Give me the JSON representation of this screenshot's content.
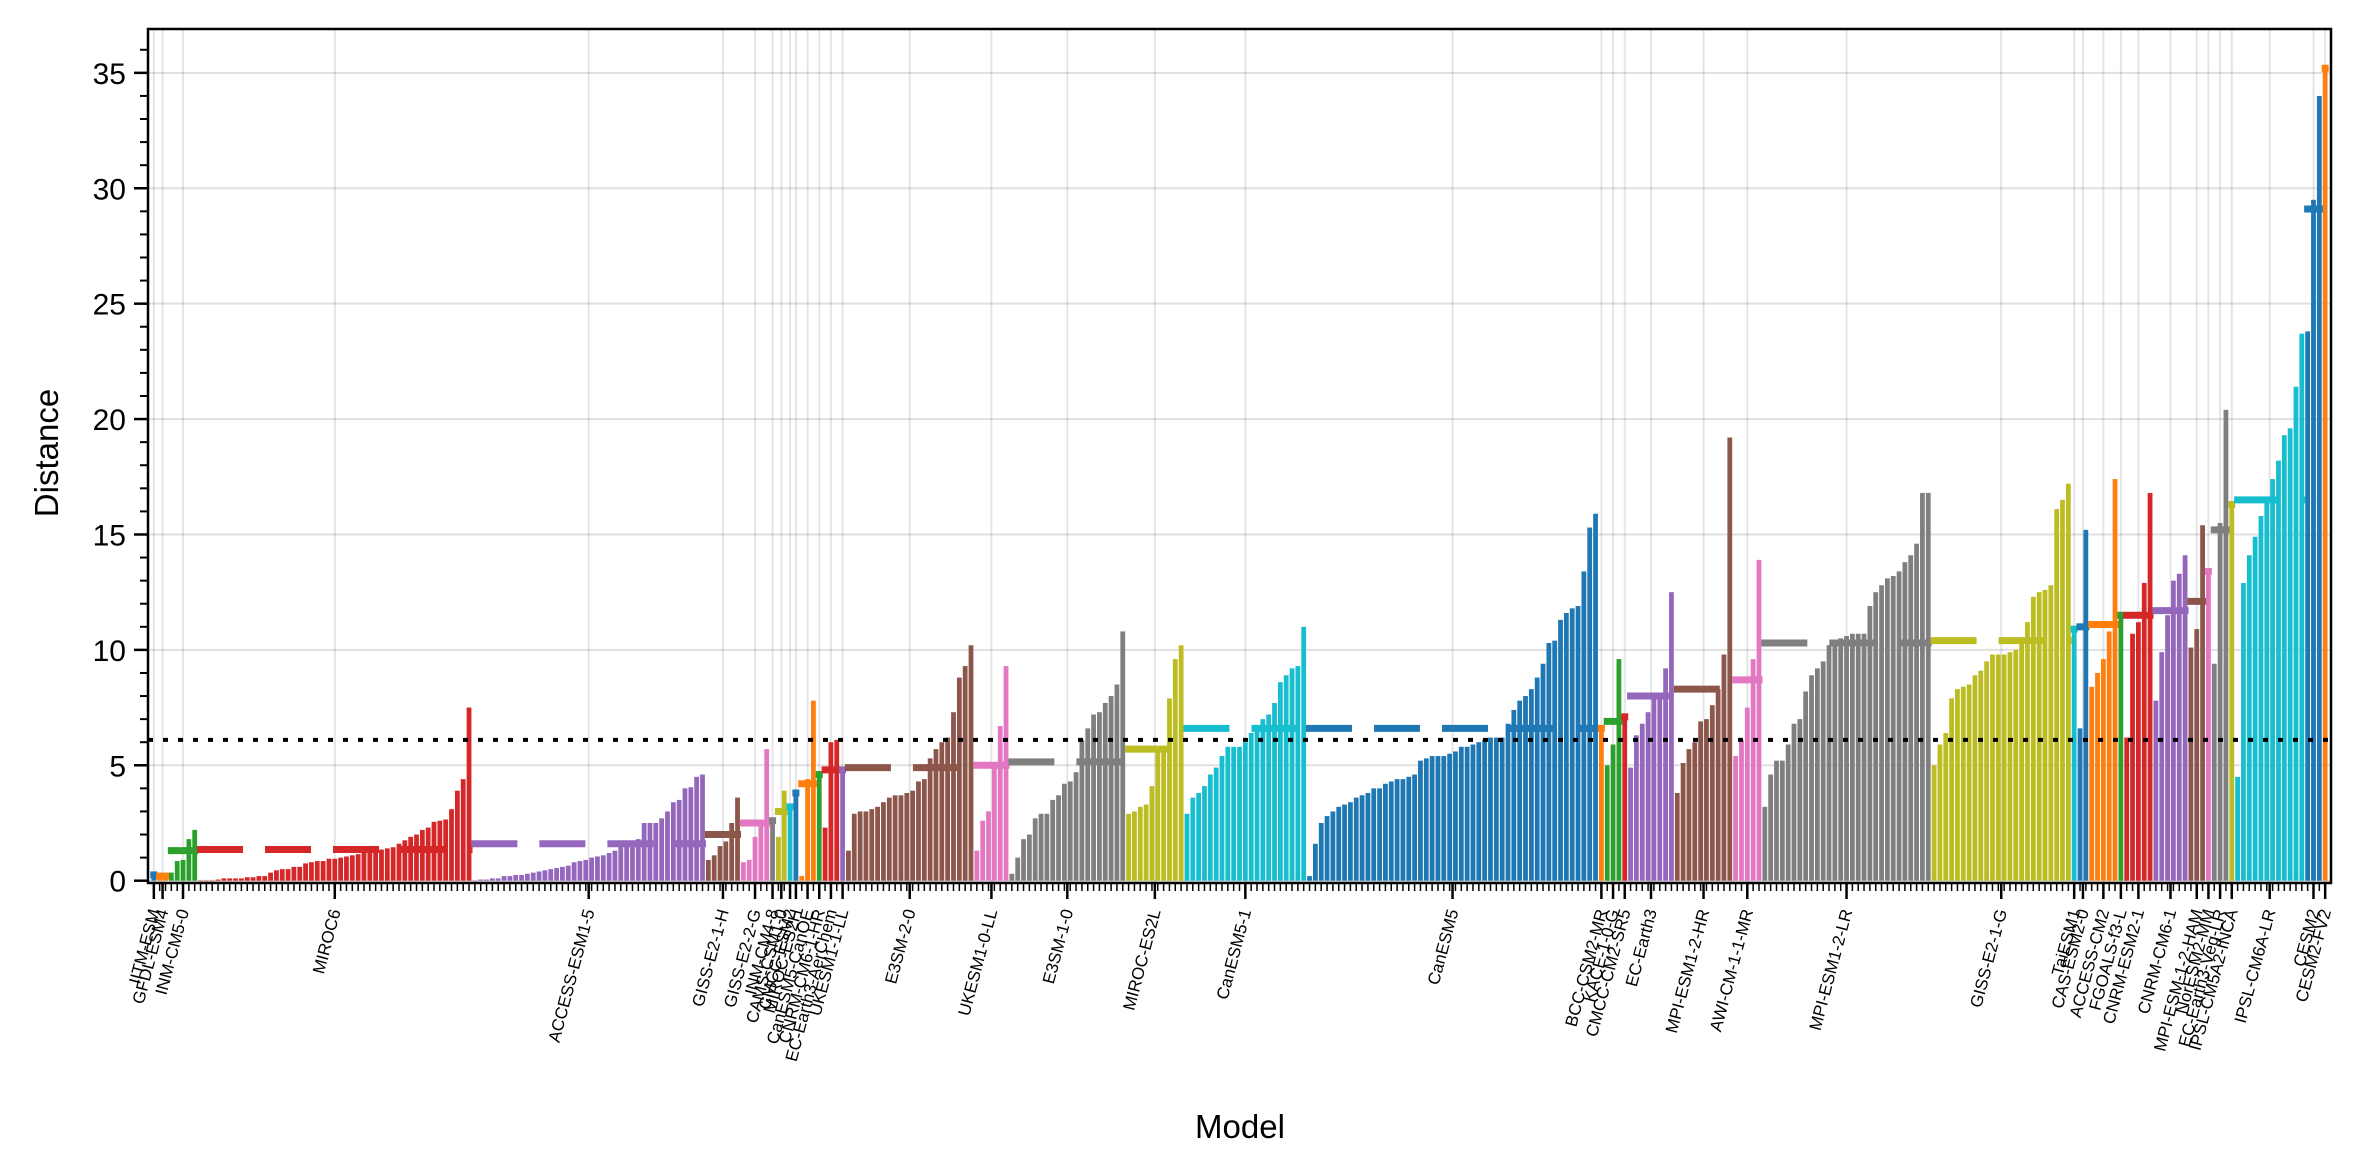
{
  "chart_data": {
    "type": "bar",
    "title": "",
    "xlabel": "Model",
    "ylabel": "Distance",
    "ylim": [
      -0.1,
      36.9
    ],
    "yticks": [
      0,
      5,
      10,
      15,
      20,
      25,
      30,
      35
    ],
    "ytick_labels": [
      "0",
      "5",
      "10",
      "15",
      "20",
      "25",
      "30",
      "35"
    ],
    "grid": true,
    "legend": "none",
    "reference_line": {
      "value": 6.1,
      "style": "dotted",
      "color": "#000000"
    },
    "mean_line_style": "dashed",
    "groups": [
      {
        "name": "IITM-ESM",
        "color": "#1f77b4",
        "mean": 0.25,
        "values": [
          0.25
        ]
      },
      {
        "name": "GFDL-ESM4",
        "color": "#ff7f0e",
        "mean": 0.2,
        "values": [
          0.1,
          0.3
        ]
      },
      {
        "name": "INM-CM5-0",
        "color": "#2ca02c",
        "mean": 1.3,
        "values": [
          0.35,
          0.85,
          0.9,
          1.8,
          2.2
        ]
      },
      {
        "name": "MIROC6",
        "color": "#d62728",
        "mean": 1.35,
        "values": [
          0.0,
          0.0,
          0.0,
          0.05,
          0.1,
          0.1,
          0.1,
          0.1,
          0.15,
          0.15,
          0.2,
          0.2,
          0.35,
          0.45,
          0.5,
          0.5,
          0.6,
          0.6,
          0.75,
          0.8,
          0.85,
          0.85,
          0.95,
          0.95,
          1.0,
          1.05,
          1.1,
          1.15,
          1.2,
          1.25,
          1.3,
          1.35,
          1.4,
          1.45,
          1.6,
          1.75,
          1.9,
          2.0,
          2.2,
          2.3,
          2.55,
          2.6,
          2.65,
          3.1,
          3.9,
          4.4,
          7.5
        ]
      },
      {
        "name": "ACCESS-ESM1-5",
        "color": "#9467bd",
        "mean": 1.6,
        "values": [
          0.0,
          0.05,
          0.05,
          0.1,
          0.1,
          0.2,
          0.2,
          0.25,
          0.25,
          0.3,
          0.35,
          0.4,
          0.45,
          0.5,
          0.55,
          0.6,
          0.65,
          0.8,
          0.85,
          0.9,
          1.0,
          1.05,
          1.1,
          1.2,
          1.3,
          1.55,
          1.6,
          1.7,
          1.8,
          2.5,
          2.5,
          2.5,
          2.7,
          3.0,
          3.4,
          3.5,
          4.0,
          4.05,
          4.5,
          4.6
        ]
      },
      {
        "name": "GISS-E2-1-H",
        "color": "#8c564b",
        "mean": 2.0,
        "values": [
          0.9,
          1.1,
          1.5,
          1.7,
          2.5,
          3.6
        ]
      },
      {
        "name": "GISS-E2-2-G",
        "color": "#e377c2",
        "mean": 2.5,
        "values": [
          0.8,
          0.9,
          1.9,
          2.5,
          5.7
        ]
      },
      {
        "name": "INM-CM4-8",
        "color": "#7f7f7f",
        "mean": 2.6,
        "values": [
          2.6
        ]
      },
      {
        "name": "CAMS-CSM1-0",
        "color": "#bcbd22",
        "mean": 3.0,
        "values": [
          1.9,
          3.9
        ]
      },
      {
        "name": "CMCC-ESM2",
        "color": "#17becf",
        "mean": 3.2,
        "values": [
          3.2
        ]
      },
      {
        "name": "MIROC-ES2H",
        "color": "#1f77b4",
        "mean": 3.8,
        "values": [
          3.8
        ]
      },
      {
        "name": "CanESM5-CanOE",
        "color": "#ff7f0e",
        "mean": 4.2,
        "values": [
          0.2,
          4.4,
          7.8
        ]
      },
      {
        "name": "CNRM-CM6-1-HR",
        "color": "#2ca02c",
        "mean": 4.6,
        "values": [
          4.6
        ]
      },
      {
        "name": "EC-Earth3-AerChem",
        "color": "#d62728",
        "mean": 4.8,
        "values": [
          2.3,
          6.0,
          6.1
        ]
      },
      {
        "name": "UKESM1-1-LL",
        "color": "#9467bd",
        "mean": 4.8,
        "values": [
          4.8
        ]
      },
      {
        "name": "E3SM-2-0",
        "color": "#8c564b",
        "mean": 4.9,
        "values": [
          1.3,
          2.9,
          3.0,
          3.0,
          3.1,
          3.2,
          3.4,
          3.6,
          3.7,
          3.7,
          3.8,
          3.9,
          4.3,
          4.4,
          5.3,
          5.7,
          6.0,
          6.2,
          7.3,
          8.8,
          9.3,
          10.2
        ]
      },
      {
        "name": "UKESM1-0-LL",
        "color": "#e377c2",
        "mean": 5.0,
        "values": [
          1.3,
          2.6,
          3.0,
          4.9,
          6.7,
          9.3
        ]
      },
      {
        "name": "E3SM-1-0",
        "color": "#7f7f7f",
        "mean": 5.15,
        "values": [
          0.3,
          1.0,
          1.8,
          2.0,
          2.7,
          2.9,
          2.9,
          3.5,
          3.7,
          4.2,
          4.3,
          4.7,
          6.1,
          6.6,
          7.2,
          7.3,
          7.7,
          8.0,
          8.5,
          10.8
        ]
      },
      {
        "name": "MIROC-ES2L",
        "color": "#bcbd22",
        "mean": 5.7,
        "values": [
          2.9,
          3.0,
          3.2,
          3.3,
          4.1,
          5.7,
          5.7,
          7.9,
          9.6,
          10.2
        ]
      },
      {
        "name": "CanESM5-1",
        "color": "#17becf",
        "mean": 6.6,
        "values": [
          2.9,
          3.6,
          3.8,
          4.1,
          4.6,
          4.9,
          5.4,
          5.8,
          5.8,
          5.8,
          6.0,
          6.4,
          6.6,
          7.0,
          7.2,
          7.7,
          8.6,
          8.9,
          9.2,
          9.3,
          11.0
        ]
      },
      {
        "name": "CanESM5",
        "color": "#1f77b4",
        "mean": 6.6,
        "values": [
          0.2,
          1.6,
          2.5,
          2.8,
          3.0,
          3.2,
          3.3,
          3.4,
          3.6,
          3.7,
          3.8,
          4.0,
          4.0,
          4.2,
          4.3,
          4.4,
          4.4,
          4.5,
          4.6,
          5.2,
          5.3,
          5.4,
          5.4,
          5.4,
          5.5,
          5.6,
          5.8,
          5.8,
          5.9,
          6.0,
          6.1,
          6.2,
          6.2,
          6.2,
          6.8,
          7.4,
          7.8,
          8.0,
          8.3,
          8.8,
          9.4,
          10.3,
          10.4,
          11.3,
          11.6,
          11.8,
          11.9,
          13.4,
          15.3,
          15.9
        ]
      },
      {
        "name": "BCC-CSM2-MR",
        "color": "#ff7f0e",
        "mean": 6.6,
        "values": [
          6.6
        ]
      },
      {
        "name": "KACE-1-0-G",
        "color": "#2ca02c",
        "mean": 6.9,
        "values": [
          5.0,
          5.9,
          9.6
        ]
      },
      {
        "name": "CMCC-CM2-SR5",
        "color": "#d62728",
        "mean": 7.1,
        "values": [
          7.1
        ]
      },
      {
        "name": "EC-Earth3",
        "color": "#9467bd",
        "mean": 8.0,
        "values": [
          4.9,
          6.3,
          6.8,
          7.3,
          7.9,
          8.1,
          9.2,
          12.5
        ]
      },
      {
        "name": "MPI-ESM1-2-HR",
        "color": "#8c564b",
        "mean": 8.3,
        "values": [
          3.8,
          5.1,
          5.7,
          6.0,
          6.9,
          7.0,
          7.6,
          8.3,
          9.8,
          19.2
        ]
      },
      {
        "name": "AWI-CM-1-1-MR",
        "color": "#e377c2",
        "mean": 8.7,
        "values": [
          5.4,
          6.1,
          7.5,
          9.6,
          13.9
        ]
      },
      {
        "name": "MPI-ESM1-2-LR",
        "color": "#7f7f7f",
        "mean": 10.3,
        "values": [
          3.2,
          4.6,
          5.2,
          5.2,
          5.9,
          6.8,
          7.0,
          8.2,
          8.9,
          9.2,
          9.5,
          10.2,
          10.4,
          10.5,
          10.6,
          10.7,
          10.7,
          10.7,
          11.9,
          12.5,
          12.8,
          13.1,
          13.2,
          13.4,
          13.8,
          14.1,
          14.6,
          16.8,
          16.8
        ]
      },
      {
        "name": "GISS-E2-1-G",
        "color": "#bcbd22",
        "mean": 10.4,
        "values": [
          5.0,
          5.9,
          6.4,
          7.9,
          8.3,
          8.4,
          8.5,
          8.9,
          9.1,
          9.5,
          9.8,
          9.8,
          9.8,
          9.9,
          10.0,
          10.4,
          11.2,
          12.3,
          12.5,
          12.6,
          12.8,
          16.1,
          16.5,
          17.2
        ]
      },
      {
        "name": "TaiESM1",
        "color": "#17becf",
        "mean": 10.9,
        "values": [
          10.9
        ]
      },
      {
        "name": "CAS-ESM2-0",
        "color": "#1f77b4",
        "mean": 11.0,
        "values": [
          6.6,
          15.2
        ]
      },
      {
        "name": "ACCESS-CM2",
        "color": "#ff7f0e",
        "mean": 11.1,
        "values": [
          8.4,
          9.0,
          9.6,
          10.8,
          17.4
        ]
      },
      {
        "name": "FGOALS-f3-L",
        "color": "#2ca02c",
        "mean": 11.5,
        "values": [
          11.5
        ]
      },
      {
        "name": "CNRM-ESM2-1",
        "color": "#d62728",
        "mean": 11.5,
        "values": [
          6.2,
          10.7,
          11.2,
          12.9,
          16.8
        ]
      },
      {
        "name": "CNRM-CM6-1",
        "color": "#9467bd",
        "mean": 11.7,
        "values": [
          7.8,
          9.9,
          11.5,
          13.0,
          13.3,
          14.1
        ]
      },
      {
        "name": "MPI-ESM-1-2-HAM",
        "color": "#8c564b",
        "mean": 12.1,
        "values": [
          10.1,
          10.9,
          15.4
        ]
      },
      {
        "name": "NorESM2-MM",
        "color": "#e377c2",
        "mean": 13.4,
        "values": [
          13.4
        ]
      },
      {
        "name": "EC-Earth3-Veg-LR",
        "color": "#7f7f7f",
        "mean": 15.2,
        "values": [
          9.4,
          15.5,
          20.4
        ]
      },
      {
        "name": "IPSL-CM5A2-INCA",
        "color": "#bcbd22",
        "mean": 16.3,
        "values": [
          16.3
        ]
      },
      {
        "name": "IPSL-CM6A-LR",
        "color": "#17becf",
        "mean": 16.5,
        "values": [
          4.5,
          12.9,
          14.1,
          14.9,
          15.8,
          16.4,
          17.4,
          18.2,
          19.3,
          19.6,
          21.4,
          23.7
        ]
      },
      {
        "name": "CESM2",
        "color": "#1f77b4",
        "mean": 29.1,
        "values": [
          23.8,
          29.5,
          34.0
        ]
      },
      {
        "name": "CESM2-FV2",
        "color": "#ff7f0e",
        "mean": 35.2,
        "values": [
          35.2
        ]
      }
    ]
  }
}
